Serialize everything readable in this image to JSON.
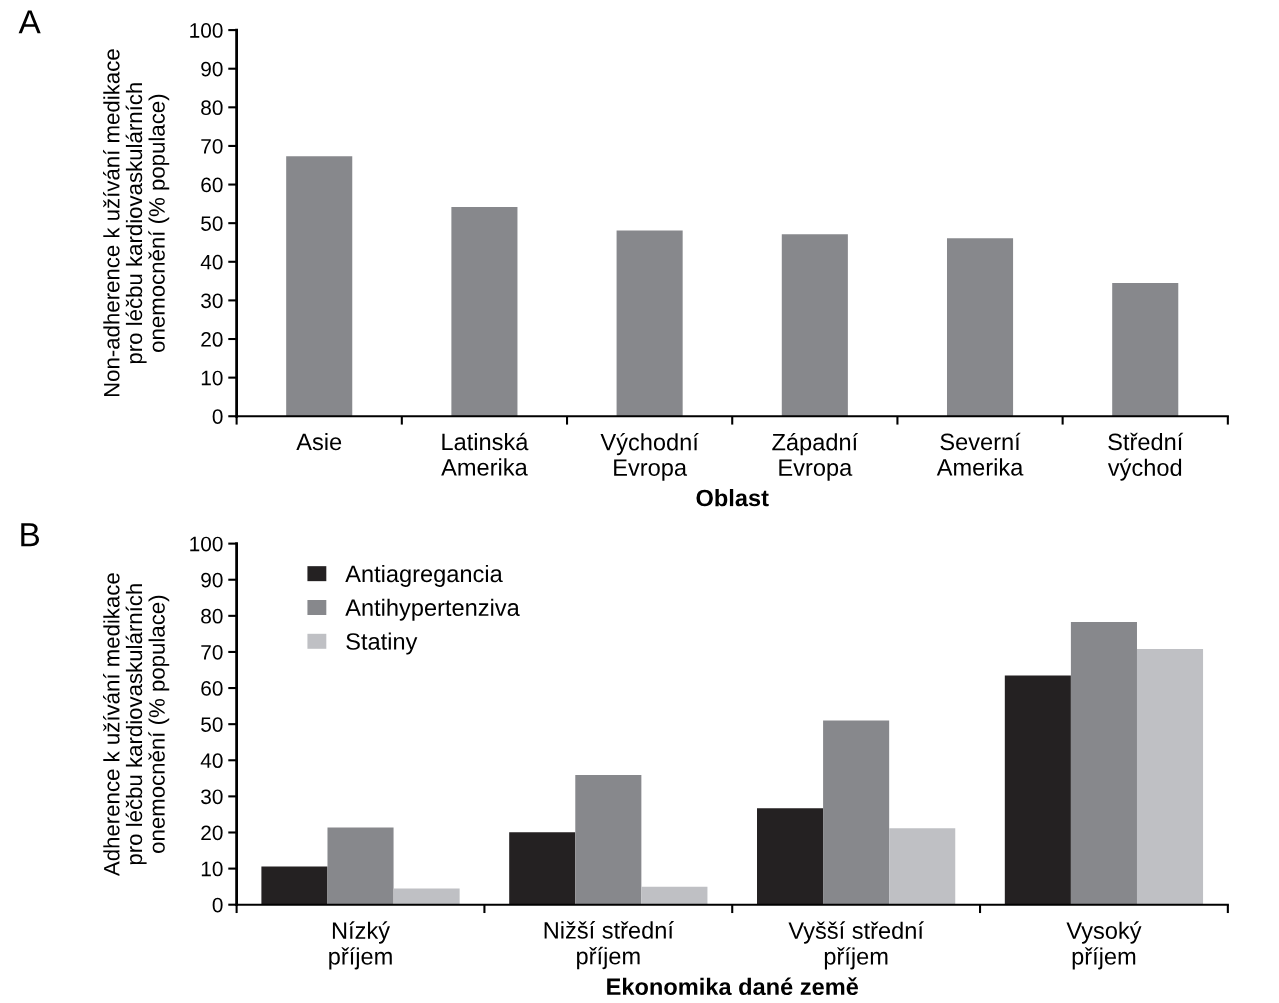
{
  "chart_data": [
    {
      "type": "bar",
      "title": "A",
      "xlabel": "Oblast",
      "ylabel": "Non-adherence k užívání medikace\npro léčbu kardiovaskulárních\nonemocnění (% populace)",
      "categories": [
        "Asie",
        "Latinská\nAmerika",
        "Východní\nEvropa",
        "Západní\nEvropa",
        "Severní\nAmerika",
        "Střední\nvýchod"
      ],
      "values": [
        67.3,
        54.2,
        48.1,
        47.1,
        46.1,
        34.5
      ],
      "color": "#87888c",
      "ylim": [
        0,
        100
      ],
      "yticks": [
        0,
        10,
        20,
        30,
        40,
        50,
        60,
        70,
        80,
        90,
        100
      ],
      "grid": false,
      "legend": false
    },
    {
      "type": "bar",
      "title": "B",
      "xlabel": "Ekonomika dané země",
      "ylabel": "Adherence k užívání medikace\npro léčbu kardiovaskulárních\nonemocnění (% populace)",
      "categories": [
        "Nízký\npříjem",
        "Nižší střední\npříjem",
        "Vyšší střední\npříjem",
        "Vysoký\npříjem"
      ],
      "series": [
        {
          "name": "Antiagregancia",
          "color": "#242122",
          "values": [
            10.6,
            20.1,
            26.7,
            63.5
          ]
        },
        {
          "name": "Antihypertenziva",
          "color": "#87888c",
          "values": [
            21.4,
            35.9,
            51.0,
            78.3
          ]
        },
        {
          "name": "Statiny",
          "color": "#bfc0c4",
          "values": [
            4.5,
            5.0,
            21.2,
            70.8
          ]
        }
      ],
      "ylim": [
        0,
        100
      ],
      "yticks": [
        0,
        10,
        20,
        30,
        40,
        50,
        60,
        70,
        80,
        90,
        100
      ],
      "grid": false,
      "legend": "top left"
    }
  ]
}
